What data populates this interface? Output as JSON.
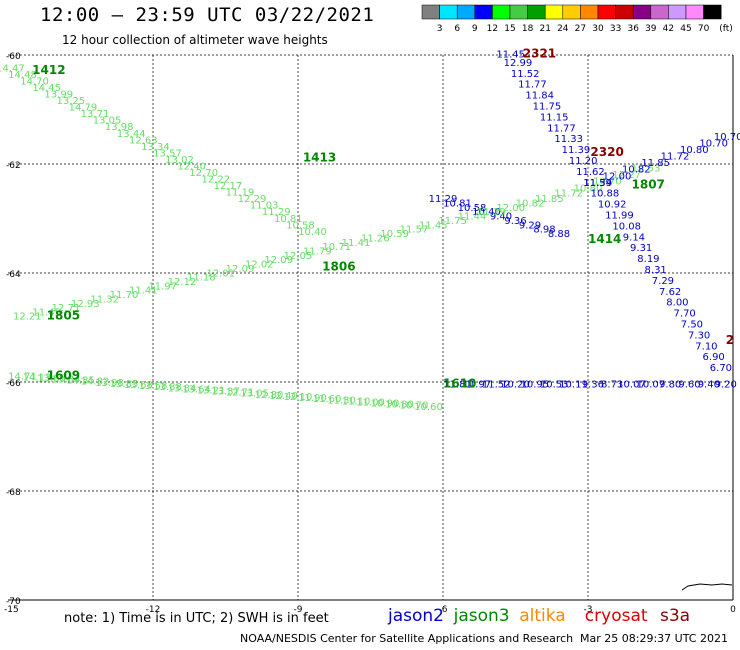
{
  "header": {
    "title": "12:00 – 23:59 UTC 03/22/2021",
    "subtitle": "12 hour collection of altimeter wave heights"
  },
  "colorbar": {
    "colors": [
      "#808080",
      "#00e5ff",
      "#00aaff",
      "#0000ff",
      "#00ff00",
      "#44cc44",
      "#00a000",
      "#ffff00",
      "#ffcc00",
      "#ff8800",
      "#ff0000",
      "#cc0000",
      "#880088",
      "#cc66cc",
      "#cc99ff",
      "#ff88ff",
      "#000000"
    ],
    "labels": [
      "3",
      "6",
      "9",
      "12",
      "15",
      "18",
      "21",
      "24",
      "27",
      "30",
      "33",
      "36",
      "39",
      "42",
      "45",
      "70"
    ],
    "unit": "(ft)"
  },
  "footer": {
    "note": "note:  1) Time is in UTC;  2) SWH is in feet",
    "legend": [
      {
        "label": "jason2",
        "color": "#0000cc"
      },
      {
        "label": "jason3",
        "color": "#008800"
      },
      {
        "label": "altika",
        "color": "#ff8800"
      },
      {
        "label": "cryosat",
        "color": "#dd0000"
      },
      {
        "label": "s3a",
        "color": "#880000"
      }
    ],
    "credit": "NOAA/NESDIS Center for Satellite Applications and Research",
    "timestamp": "Mar 25 08:29:37 UTC 2021"
  },
  "chart_data": {
    "type": "scatter",
    "title": "12:00 – 23:59 UTC 03/22/2021",
    "xlim": [
      -15,
      0
    ],
    "ylim": [
      -70,
      -60
    ],
    "x_ticks": [
      -15,
      -12,
      -9,
      -6,
      -3,
      0
    ],
    "y_ticks": [
      -60,
      -62,
      -64,
      -66,
      -68,
      -70
    ],
    "grid": true,
    "track_labels": [
      {
        "text": "1412",
        "x": -14.5,
        "y": -60.35,
        "color": "#008800"
      },
      {
        "text": "1413",
        "x": -8.9,
        "y": -61.95,
        "color": "#008800"
      },
      {
        "text": "1805",
        "x": -14.2,
        "y": -64.85,
        "color": "#008800"
      },
      {
        "text": "1806",
        "x": -8.5,
        "y": -63.95,
        "color": "#008800"
      },
      {
        "text": "1609",
        "x": -14.2,
        "y": -65.95,
        "color": "#008800"
      },
      {
        "text": "1610",
        "x": -6.0,
        "y": -66.1,
        "color": "#008800"
      },
      {
        "text": "1414",
        "x": -3.0,
        "y": -63.45,
        "color": "#008800"
      },
      {
        "text": "1807",
        "x": -2.1,
        "y": -62.45,
        "color": "#008800"
      },
      {
        "text": "2321",
        "x": -4.35,
        "y": -60.05,
        "color": "#880000"
      },
      {
        "text": "2320",
        "x": -2.95,
        "y": -61.85,
        "color": "#880000"
      },
      {
        "text": "2",
        "x": -0.15,
        "y": -65.3,
        "color": "#880000"
      }
    ],
    "series": [
      {
        "name": "jason3 pass 1412-1413 (descending west to east)",
        "color": "#66dd66",
        "x": [
          -14.95,
          -14.7,
          -14.45,
          -14.2,
          -13.95,
          -13.7,
          -13.45,
          -13.2,
          -12.95,
          -12.7,
          -12.45,
          -12.2,
          -11.95,
          -11.7,
          -11.45,
          -11.2,
          -10.95,
          -10.7,
          -10.45,
          -10.2,
          -9.95,
          -9.7,
          -9.45,
          -9.2,
          -8.95,
          -8.7
        ],
        "y": [
          -60.3,
          -60.42,
          -60.54,
          -60.66,
          -60.78,
          -60.9,
          -61.02,
          -61.14,
          -61.26,
          -61.38,
          -61.5,
          -61.62,
          -61.74,
          -61.86,
          -61.98,
          -62.1,
          -62.22,
          -62.34,
          -62.46,
          -62.58,
          -62.7,
          -62.82,
          -62.94,
          -63.06,
          -63.18,
          -63.3
        ],
        "values": [
          14.47,
          14.48,
          14.7,
          14.45,
          13.99,
          13.25,
          14.79,
          13.71,
          13.05,
          13.98,
          13.44,
          12.63,
          13.34,
          13.57,
          13.02,
          12.4,
          12.7,
          12.22,
          12.17,
          11.19,
          12.29,
          11.03,
          11.29,
          10.81,
          10.58,
          10.4
        ]
      },
      {
        "name": "jason2 pass (descending)",
        "color": "#0000cc",
        "x": [
          -6.0,
          -5.7,
          -5.4,
          -5.1,
          -4.8,
          -4.5,
          -4.2,
          -3.9,
          -3.6
        ],
        "y": [
          -62.7,
          -62.78,
          -62.86,
          -62.94,
          -63.02,
          -63.1,
          -63.18,
          -63.26,
          -63.34
        ],
        "values": [
          11.29,
          10.81,
          10.58,
          10.4,
          9.4,
          9.36,
          9.29,
          8.98,
          8.88
        ]
      },
      {
        "name": "jason3 pass 1805-1806-1807 (ascending)",
        "color": "#66dd66",
        "x": [
          -14.6,
          -14.2,
          -13.8,
          -13.4,
          -13.0,
          -12.6,
          -12.2,
          -11.8,
          -11.4,
          -11.0,
          -10.6,
          -10.2,
          -9.8,
          -9.4,
          -9.0,
          -8.6,
          -8.2,
          -7.8,
          -7.4,
          -7.0,
          -6.6,
          -6.2,
          -5.8,
          -5.4,
          -5.0,
          -4.6,
          -4.2,
          -3.8,
          -3.4,
          -3.0,
          -2.6,
          -2.2,
          -1.8
        ],
        "y": [
          -64.85,
          -64.78,
          -64.7,
          -64.62,
          -64.54,
          -64.46,
          -64.38,
          -64.3,
          -64.22,
          -64.14,
          -64.06,
          -63.98,
          -63.9,
          -63.82,
          -63.74,
          -63.66,
          -63.58,
          -63.5,
          -63.42,
          -63.34,
          -63.26,
          -63.18,
          -63.1,
          -63.02,
          -62.94,
          -62.86,
          -62.78,
          -62.7,
          -62.6,
          -62.5,
          -62.38,
          -62.26,
          -62.14
        ],
        "values": [
          12.21,
          11.45,
          12.71,
          12.93,
          11.32,
          11.7,
          11.41,
          11.97,
          12.12,
          11.18,
          12.01,
          12.09,
          12.02,
          12.09,
          12.05,
          11.79,
          10.71,
          11.41,
          11.26,
          10.59,
          11.57,
          11.45,
          11.75,
          11.44,
          11.39,
          12.0,
          10.82,
          11.85,
          11.72,
          10.8,
          10.7,
          12.27,
          12.53
        ]
      },
      {
        "name": "jason2 pass 1807 north (ascending)",
        "color": "#0000cc",
        "x": [
          -2.8,
          -2.4,
          -2.0,
          -1.6,
          -1.2,
          -0.8,
          -0.4,
          -0.1
        ],
        "y": [
          -62.4,
          -62.28,
          -62.16,
          -62.04,
          -61.92,
          -61.8,
          -61.68,
          -61.56
        ],
        "values": [
          11.39,
          12.0,
          10.82,
          11.85,
          11.72,
          10.8,
          10.7,
          10.7
        ]
      },
      {
        "name": "jason3 pass 1609-1610 (flat)",
        "color": "#66dd66",
        "x": [
          -14.7,
          -14.4,
          -14.1,
          -13.8,
          -13.5,
          -13.2,
          -12.9,
          -12.6,
          -12.3,
          -12.0,
          -11.7,
          -11.4,
          -11.1,
          -10.8,
          -10.5,
          -10.2,
          -9.9,
          -9.6,
          -9.3,
          -9.0,
          -8.7,
          -8.4,
          -8.1,
          -7.8,
          -7.5,
          -7.2,
          -6.9,
          -6.6,
          -6.3
        ],
        "y": [
          -65.95,
          -65.97,
          -65.99,
          -66.01,
          -66.03,
          -66.05,
          -66.07,
          -66.09,
          -66.11,
          -66.13,
          -66.15,
          -66.17,
          -66.19,
          -66.21,
          -66.23,
          -66.25,
          -66.27,
          -66.29,
          -66.31,
          -66.33,
          -66.35,
          -66.37,
          -66.39,
          -66.41,
          -66.43,
          -66.45,
          -66.47,
          -66.49,
          -66.51
        ],
        "values": [
          14.71,
          14.13,
          13.68,
          13.84,
          14.35,
          14.82,
          13.98,
          13.85,
          13.68,
          13.58,
          13.88,
          13.84,
          13.64,
          13.21,
          13.37,
          12.71,
          13.05,
          12.8,
          12.4,
          12.1,
          11.9,
          11.6,
          11.3,
          11.1,
          11.0,
          10.9,
          10.8,
          10.7,
          10.6
        ]
      },
      {
        "name": "jason2 pass 1610 east (flat)",
        "color": "#0000cc",
        "x": [
          -5.7,
          -5.3,
          -4.9,
          -4.5,
          -4.1,
          -3.7,
          -3.3,
          -2.9,
          -2.5,
          -2.1,
          -1.7,
          -1.3,
          -0.9,
          -0.5,
          -0.15
        ],
        "y": [
          -66.1,
          -66.1,
          -66.1,
          -66.1,
          -66.1,
          -66.1,
          -66.1,
          -66.1,
          -66.1,
          -66.1,
          -66.1,
          -66.1,
          -66.1,
          -66.1,
          -66.1
        ],
        "values": [
          11.81,
          11.97,
          11.52,
          10.2,
          10.95,
          10.53,
          10.11,
          9.36,
          8.73,
          10.07,
          10.07,
          9.8,
          9.6,
          9.4,
          9.2
        ]
      },
      {
        "name": "jason2 pass 2321-2320 (descending north to south)",
        "color": "#0000cc",
        "x": [
          -4.6,
          -4.45,
          -4.3,
          -4.15,
          -4.0,
          -3.85,
          -3.7,
          -3.55,
          -3.4,
          -3.25,
          -3.1,
          -2.95,
          -2.8,
          -2.65,
          -2.5,
          -2.35,
          -2.2,
          -2.05,
          -1.9,
          -1.75,
          -1.6,
          -1.45,
          -1.3,
          -1.15,
          -1.0,
          -0.85,
          -0.7,
          -0.55,
          -0.4,
          -0.25
        ],
        "y": [
          -60.05,
          -60.2,
          -60.4,
          -60.6,
          -60.8,
          -61.0,
          -61.2,
          -61.4,
          -61.6,
          -61.8,
          -62.0,
          -62.2,
          -62.4,
          -62.6,
          -62.8,
          -63.0,
          -63.2,
          -63.4,
          -63.6,
          -63.8,
          -64.0,
          -64.2,
          -64.4,
          -64.6,
          -64.8,
          -65.0,
          -65.2,
          -65.4,
          -65.6,
          -65.8
        ],
        "values": [
          11.45,
          12.99,
          11.52,
          11.77,
          11.84,
          11.75,
          11.15,
          11.77,
          11.33,
          11.39,
          11.2,
          11.62,
          11.54,
          10.88,
          10.92,
          11.99,
          10.08,
          9.14,
          9.31,
          8.19,
          8.31,
          7.29,
          7.62,
          8.0,
          7.7,
          7.5,
          7.3,
          7.1,
          6.9,
          6.7
        ]
      }
    ]
  }
}
